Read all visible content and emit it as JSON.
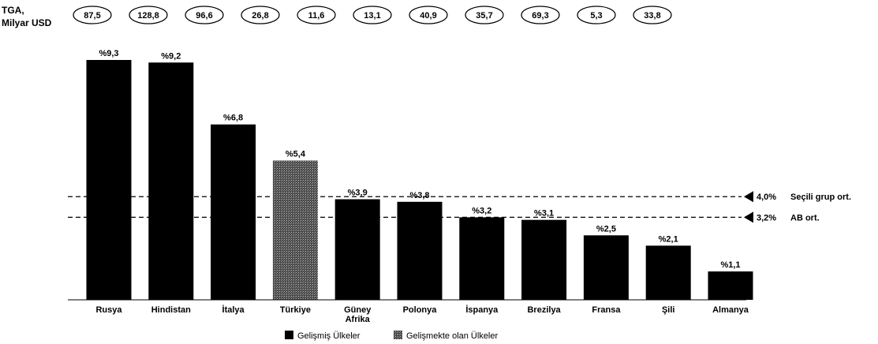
{
  "header": {
    "tga_label_line1": "TGA,",
    "tga_label_line2": "Milyar USD"
  },
  "tga_values": [
    "87,5",
    "128,8",
    "96,6",
    "26,8",
    "11,6",
    "13,1",
    "40,9",
    "35,7",
    "69,3",
    "5,3",
    "33,8"
  ],
  "chart_data": {
    "type": "bar",
    "title": "",
    "xlabel": "",
    "ylabel": "",
    "categories": [
      "Rusya",
      "Hindistan",
      "İtalya",
      "Türkiye",
      "Güney Afrika",
      "Polonya",
      "İspanya",
      "Brezilya",
      "Fransa",
      "Şili",
      "Almanya"
    ],
    "values": [
      9.3,
      9.2,
      6.8,
      5.4,
      3.9,
      3.8,
      3.2,
      3.1,
      2.5,
      2.1,
      1.1
    ],
    "data_labels": [
      "%9,3",
      "%9,2",
      "%6,8",
      "%5,4",
      "%3,9",
      "%3,8",
      "%3,2",
      "%3,1",
      "%2,5",
      "%2,1",
      "%1,1"
    ],
    "groups": [
      "Gelişmiş Ülkeler",
      "Gelişmiş Ülkeler",
      "Gelişmiş Ülkeler",
      "Gelişmekte olan Ülkeler",
      "Gelişmiş Ülkeler",
      "Gelişmiş Ülkeler",
      "Gelişmiş Ülkeler",
      "Gelişmiş Ülkeler",
      "Gelişmiş Ülkeler",
      "Gelişmiş Ülkeler",
      "Gelişmiş Ülkeler"
    ],
    "ylim": [
      0,
      9.3
    ],
    "grid": false,
    "reference_lines": [
      {
        "value": 4.0,
        "value_label": "4,0%",
        "label": "Seçili grup ort."
      },
      {
        "value": 3.2,
        "value_label": "3,2%",
        "label": "AB ort."
      }
    ],
    "legend": {
      "placement": "bottom",
      "items": [
        {
          "label": "Gelişmiş Ülkeler",
          "color": "#000000"
        },
        {
          "label": "Gelişmekte olan Ülkeler",
          "color": "#3a3a3a"
        }
      ]
    }
  }
}
